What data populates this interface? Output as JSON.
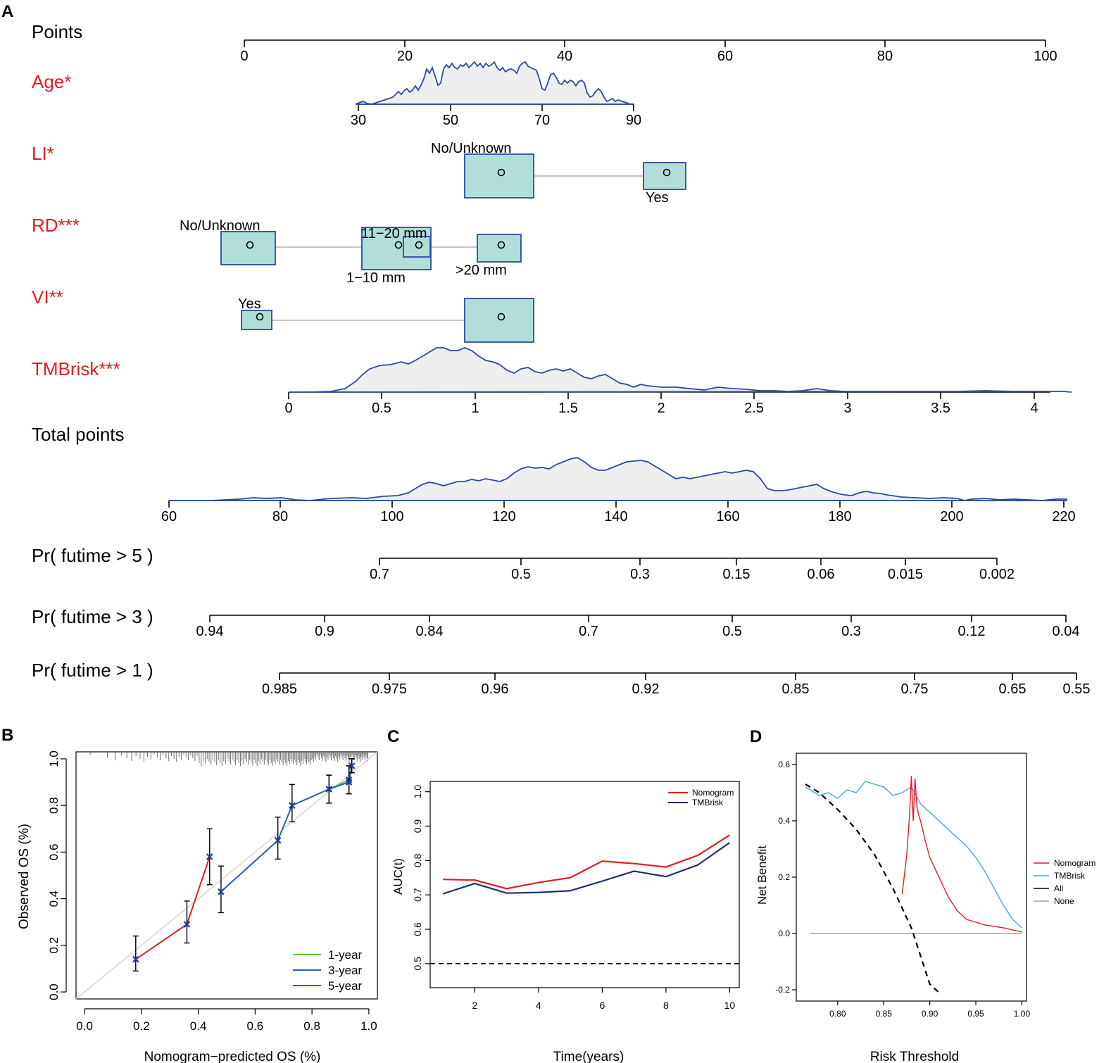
{
  "chart_data": [
    {
      "panel": "A",
      "type": "nomogram",
      "rows": [
        {
          "label": "Points",
          "color": "#000000",
          "ticks": [
            "0",
            "20",
            "40",
            "60",
            "80",
            "100"
          ],
          "range": [
            0,
            100
          ]
        },
        {
          "label": "Age*",
          "color": "#e11d24",
          "ticks": [
            "30",
            "50",
            "70",
            "90"
          ],
          "points_range": [
            14,
            49
          ]
        },
        {
          "label": "LI*",
          "color": "#e11d24",
          "levels": [
            {
              "name": "No/Unknown",
              "points": 32
            },
            {
              "name": "Yes",
              "points": 53
            }
          ]
        },
        {
          "label": "RD***",
          "color": "#e11d24",
          "levels": [
            {
              "name": "No/Unknown",
              "points": 0
            },
            {
              "name": "1–10 mm",
              "points": 19
            },
            {
              "name": "11–20 mm",
              "points": 22
            },
            {
              "name": ">20 mm",
              "points": 32
            }
          ]
        },
        {
          "label": "VI**",
          "color": "#e11d24",
          "levels": [
            {
              "name": "Yes",
              "points": 2
            },
            {
              "name": "No/Unknown",
              "points": 32
            }
          ]
        },
        {
          "label": "TMBrisk***",
          "color": "#e11d24",
          "ticks": [
            "0",
            "0.5",
            "1",
            "1.5",
            "2",
            "2.5",
            "3",
            "3.5",
            "4"
          ]
        },
        {
          "label": "Total points",
          "color": "#000000",
          "ticks": [
            "60",
            "80",
            "100",
            "120",
            "140",
            "160",
            "180",
            "200",
            "220"
          ]
        },
        {
          "label": "Pr( futime > 5 )",
          "color": "#000000",
          "ticks": [
            "0.7",
            "0.5",
            "0.3",
            "0.15",
            "0.06",
            "0.015",
            "0.002"
          ]
        },
        {
          "label": "Pr( futime > 3 )",
          "color": "#000000",
          "ticks": [
            "0.94",
            "0.9",
            "0.84",
            "0.7",
            "0.5",
            "0.3",
            "0.12",
            "0.04"
          ]
        },
        {
          "label": "Pr( futime > 1 )",
          "color": "#000000",
          "ticks": [
            "0.985",
            "0.975",
            "0.96",
            "0.92",
            "0.85",
            "0.75",
            "0.65",
            "0.55"
          ]
        }
      ]
    },
    {
      "panel": "B",
      "type": "line",
      "xlabel": "Nomogram−predicted OS (%)",
      "ylabel": "Observed OS (%)",
      "xlim": [
        -0.03,
        1.03
      ],
      "ylim": [
        -0.03,
        1.03
      ],
      "xticks": [
        "0.0",
        "0.2",
        "0.4",
        "0.6",
        "0.8",
        "1.0"
      ],
      "yticks": [
        "0.0",
        "0.2",
        "0.4",
        "0.6",
        "0.8",
        "1.0"
      ],
      "legend": {
        "position": "bottom-right"
      },
      "series": [
        {
          "name": "1-year",
          "color": "#6abf40",
          "x": [
            0.86,
            0.93,
            0.94
          ],
          "y": [
            0.87,
            0.91,
            0.97
          ],
          "lo": [
            0.81,
            0.85,
            0.94
          ],
          "hi": [
            0.93,
            0.97,
            1.0
          ]
        },
        {
          "name": "3-year",
          "color": "#2a5fb0",
          "x": [
            0.48,
            0.68,
            0.73,
            0.86,
            0.93,
            0.94
          ],
          "y": [
            0.43,
            0.65,
            0.8,
            0.87,
            0.9,
            0.97
          ],
          "lo": [
            0.34,
            0.57,
            0.73,
            0.81,
            0.85,
            0.94
          ],
          "hi": [
            0.54,
            0.75,
            0.89,
            0.93,
            0.97,
            1.0
          ]
        },
        {
          "name": "5-year",
          "color": "#e11d24",
          "x": [
            0.18,
            0.36,
            0.44
          ],
          "y": [
            0.14,
            0.29,
            0.58
          ],
          "lo": [
            0.09,
            0.21,
            0.46
          ],
          "hi": [
            0.24,
            0.39,
            0.7
          ]
        }
      ]
    },
    {
      "panel": "C",
      "type": "line",
      "xlabel": "Time(years)",
      "ylabel": "AUC(t)",
      "xlim": [
        0.6,
        10.3
      ],
      "ylim": [
        0.43,
        1.03
      ],
      "xticks": [
        2,
        4,
        6,
        8,
        10
      ],
      "yticks": [
        "0.5",
        "0.6",
        "0.7",
        "0.8",
        "0.9",
        "1.0"
      ],
      "reference_line": 0.5,
      "legend": {
        "position": "top-right"
      },
      "series": [
        {
          "name": "Nomogram",
          "color": "#e11d24",
          "x": [
            1,
            2,
            3,
            4,
            5,
            6,
            7,
            8,
            9,
            10
          ],
          "y": [
            0.745,
            0.743,
            0.718,
            0.736,
            0.75,
            0.798,
            0.791,
            0.781,
            0.815,
            0.874
          ]
        },
        {
          "name": "TMBrisk",
          "color": "#1f2f6b",
          "x": [
            1,
            2,
            3,
            4,
            5,
            6,
            7,
            8,
            9,
            10
          ],
          "y": [
            0.703,
            0.733,
            0.705,
            0.707,
            0.712,
            0.74,
            0.769,
            0.753,
            0.787,
            0.852
          ]
        }
      ]
    },
    {
      "panel": "D",
      "type": "line",
      "xlabel": "Risk Threshold",
      "ylabel": "Net Benefit",
      "xlim": [
        0.755,
        1.005
      ],
      "ylim": [
        -0.24,
        0.64
      ],
      "xticks": [
        "0.80",
        "0.85",
        "0.90",
        "0.95",
        "1.00"
      ],
      "yticks": [
        "-0.2",
        "0.0",
        "0.2",
        "0.4",
        "0.6"
      ],
      "legend": {
        "position": "right"
      },
      "series": [
        {
          "name": "Nomogram",
          "color": "#e11d24",
          "x": [
            0.87,
            0.875,
            0.878,
            0.88,
            0.882,
            0.884,
            0.886,
            0.888,
            0.89,
            0.895,
            0.9,
            0.91,
            0.92,
            0.93,
            0.94,
            0.95,
            0.96,
            0.98,
            1.0
          ],
          "y": [
            0.14,
            0.28,
            0.42,
            0.56,
            0.4,
            0.55,
            0.45,
            0.42,
            0.4,
            0.33,
            0.27,
            0.2,
            0.13,
            0.08,
            0.05,
            0.04,
            0.03,
            0.02,
            0.005
          ]
        },
        {
          "name": "TMBrisk",
          "color": "#4aa3df",
          "x": [
            0.765,
            0.78,
            0.79,
            0.8,
            0.81,
            0.82,
            0.83,
            0.84,
            0.85,
            0.86,
            0.87,
            0.88,
            0.89,
            0.9,
            0.91,
            0.92,
            0.93,
            0.94,
            0.95,
            0.96,
            0.97,
            0.98,
            0.99,
            1.0
          ],
          "y": [
            0.52,
            0.49,
            0.5,
            0.48,
            0.51,
            0.5,
            0.54,
            0.53,
            0.52,
            0.49,
            0.5,
            0.52,
            0.46,
            0.43,
            0.4,
            0.37,
            0.34,
            0.31,
            0.27,
            0.22,
            0.16,
            0.1,
            0.05,
            0.02
          ]
        },
        {
          "name": "All",
          "color": "#000000",
          "dashed": true,
          "x": [
            0.765,
            0.78,
            0.8,
            0.82,
            0.84,
            0.86,
            0.88,
            0.9,
            0.91
          ],
          "y": [
            0.53,
            0.5,
            0.44,
            0.37,
            0.28,
            0.16,
            0.02,
            -0.18,
            -0.21
          ]
        },
        {
          "name": "None",
          "color": "#a0a0a0",
          "x": [
            0.77,
            1.0
          ],
          "y": [
            0.0,
            0.0
          ]
        }
      ]
    }
  ],
  "panels": {
    "a": "A",
    "b": "B",
    "c": "C",
    "d": "D"
  },
  "labels": {
    "points": "Points",
    "age": "Age*",
    "li": "LI*",
    "rd": "RD***",
    "vi": "VI**",
    "tmbrisk": "TMBrisk***",
    "total_points": "Total points",
    "pr5": "Pr( futime > 5 )",
    "pr3": "Pr( futime > 3 )",
    "pr1": "Pr( futime > 1 )"
  },
  "level_labels": {
    "li_no": "No/Unknown",
    "li_yes": "Yes",
    "rd_no": "No/Unknown",
    "rd_1_10": "1−10 mm",
    "rd_11_20": "11−20 mm",
    "rd_gt20": ">20 mm",
    "vi_yes": "Yes",
    "vi_no": "No/Unknown"
  }
}
